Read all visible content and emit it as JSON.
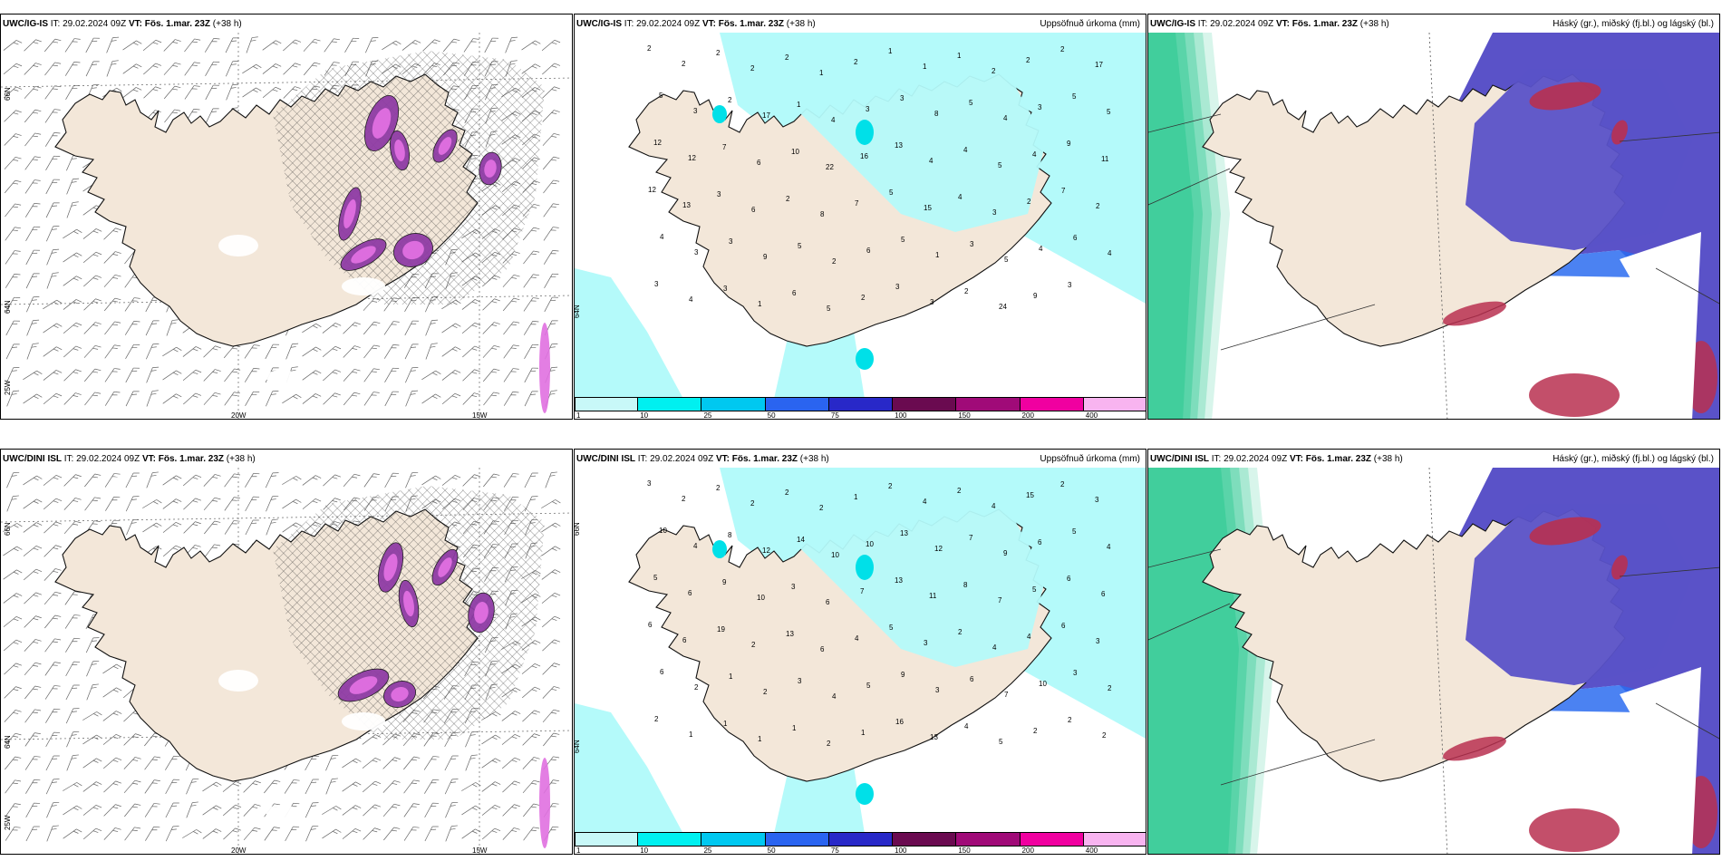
{
  "run": {
    "it_label": "IT:",
    "it_value": "29.02.2024 09Z",
    "vt_label": "VT:",
    "vt_value": "Fös. 1.mar. 23Z",
    "lead": "(+38 h)"
  },
  "rows": [
    {
      "model": "UWC/IG-IS",
      "panels": {
        "wind": {
          "lat_labels": [
            "66N",
            "64N",
            "25W"
          ],
          "lon_labels": [
            "20W",
            "15W"
          ]
        },
        "precip": {
          "title": "Uppsöfnuð úrkoma (mm)",
          "lat_labels": [
            "66N",
            "64N"
          ],
          "values": [
            "2",
            "2",
            "2",
            "2",
            "2",
            "1",
            "2",
            "1",
            "1",
            "1",
            "2",
            "2",
            "2",
            "17",
            "5",
            "3",
            "2",
            "17",
            "1",
            "4",
            "3",
            "3",
            "8",
            "5",
            "4",
            "3",
            "5",
            "5",
            "12",
            "12",
            "7",
            "6",
            "10",
            "22",
            "16",
            "13",
            "4",
            "4",
            "5",
            "4",
            "9",
            "11",
            "12",
            "13",
            "3",
            "6",
            "2",
            "8",
            "7",
            "5",
            "15",
            "4",
            "3",
            "2",
            "7",
            "2",
            "4",
            "3",
            "3",
            "9",
            "5",
            "2",
            "6",
            "5",
            "1",
            "3",
            "5",
            "4",
            "6",
            "4",
            "3",
            "4",
            "3",
            "1",
            "6",
            "5",
            "2",
            "3",
            "3",
            "2",
            "24",
            "9",
            "3"
          ]
        },
        "cloud": {
          "title": "Háský (gr.), miðský (fj.bl.) og lágský (bl.)"
        }
      }
    },
    {
      "model": "UWC/DINI ISL",
      "panels": {
        "wind": {
          "lat_labels": [
            "66N",
            "64N",
            "25W"
          ],
          "lon_labels": [
            "20W",
            "15W"
          ]
        },
        "precip": {
          "title": "Uppsöfnuð úrkoma (mm)",
          "lat_labels": [
            "66N",
            "64N"
          ],
          "values": [
            "3",
            "2",
            "2",
            "2",
            "2",
            "2",
            "1",
            "2",
            "4",
            "2",
            "4",
            "15",
            "2",
            "3",
            "10",
            "4",
            "8",
            "12",
            "14",
            "10",
            "10",
            "13",
            "12",
            "7",
            "9",
            "6",
            "5",
            "4",
            "5",
            "6",
            "9",
            "10",
            "3",
            "6",
            "7",
            "13",
            "11",
            "8",
            "7",
            "5",
            "6",
            "6",
            "6",
            "6",
            "19",
            "2",
            "13",
            "6",
            "4",
            "5",
            "3",
            "2",
            "4",
            "4",
            "6",
            "3",
            "6",
            "2",
            "1",
            "2",
            "3",
            "4",
            "5",
            "9",
            "3",
            "6",
            "7",
            "10",
            "3",
            "2",
            "2",
            "1",
            "1",
            "1",
            "1",
            "2",
            "1",
            "16",
            "13",
            "4",
            "5",
            "2",
            "2",
            "2"
          ]
        },
        "cloud": {
          "title": "Háský (gr.), miðský (fj.bl.) og lágský (bl.)"
        }
      }
    }
  ],
  "colorbar": {
    "labels": [
      "1",
      "10",
      "25",
      "50",
      "75",
      "100",
      "150",
      "200",
      "400"
    ],
    "colors": [
      "#c8f8f8",
      "#00f0f0",
      "#00c8f0",
      "#2a64f0",
      "#2828c8",
      "#6a0a50",
      "#a00a78",
      "#f000a0",
      "#f8b4f0"
    ]
  },
  "colors": {
    "land": "#f3e7d9",
    "precip_light": "#b4fafa",
    "precip_mid": "#00e0e8",
    "snow_purple": "#8e3ba4",
    "snow_pink": "#e070e0",
    "low_cloud": "#5a52c8",
    "mid_cloud_blue": "#2c6cf0",
    "high_cloud_green": "#28c890",
    "red_cloud": "#b83050"
  }
}
